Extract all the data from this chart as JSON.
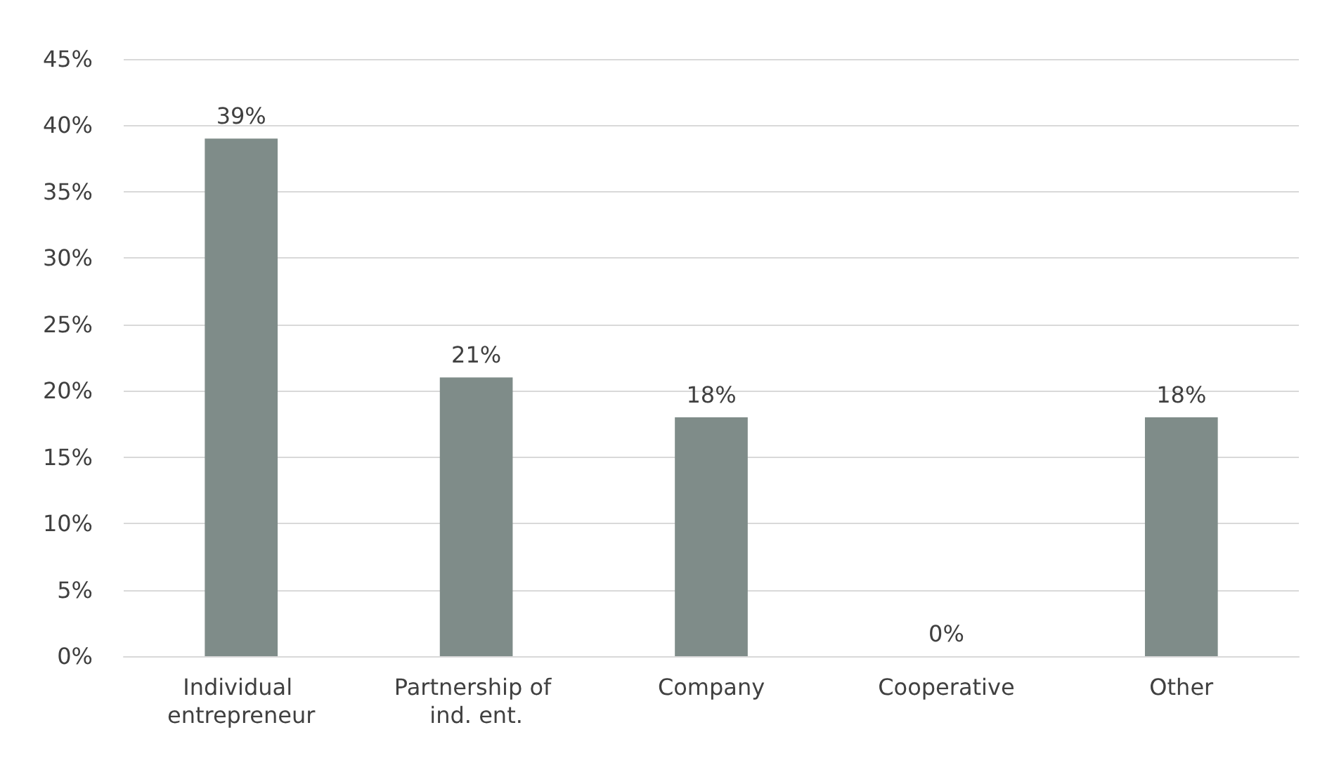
{
  "chart_data": {
    "type": "bar",
    "categories": [
      "Individual entrepreneur",
      "Partnership of ind. ent.",
      "Company",
      "Cooperative",
      "Other"
    ],
    "values": [
      39,
      21,
      18,
      0,
      18
    ],
    "value_labels": [
      "39%",
      "21%",
      "18%",
      "0%",
      "18%"
    ],
    "color": "#7f8c89",
    "ylim": [
      0,
      45
    ],
    "yticks": [
      {
        "value": 0,
        "label": "0%"
      },
      {
        "value": 5,
        "label": "5%"
      },
      {
        "value": 10,
        "label": "10%"
      },
      {
        "value": 15,
        "label": "15%"
      },
      {
        "value": 20,
        "label": "20%"
      },
      {
        "value": 25,
        "label": "25%"
      },
      {
        "value": 30,
        "label": "30%"
      },
      {
        "value": 35,
        "label": "35%"
      },
      {
        "value": 40,
        "label": "40%"
      },
      {
        "value": 45,
        "label": "45%"
      }
    ],
    "grid": "y"
  }
}
